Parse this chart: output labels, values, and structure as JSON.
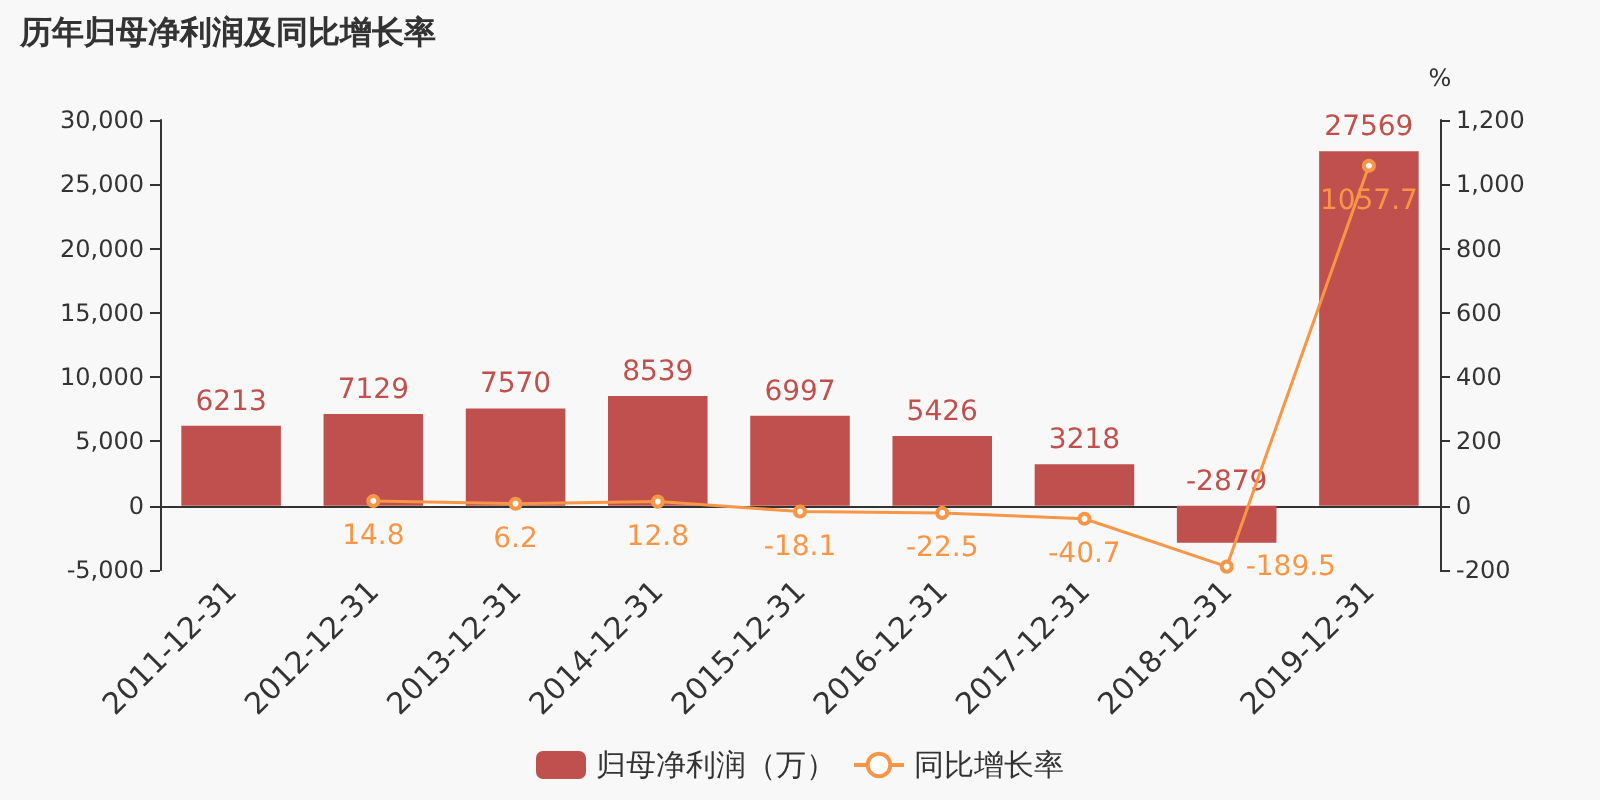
{
  "chart_data": {
    "type": "bar",
    "title": "历年归母净利润及同比增长率",
    "y2label": "%",
    "categories": [
      "2011-12-31",
      "2012-12-31",
      "2013-12-31",
      "2014-12-31",
      "2015-12-31",
      "2016-12-31",
      "2017-12-31",
      "2018-12-31",
      "2019-12-31"
    ],
    "series": [
      {
        "name": "归母净利润（万）",
        "type": "bar",
        "color": "#c0504d",
        "values": [
          6213,
          7129,
          7570,
          8539,
          6997,
          5426,
          3218,
          -2879,
          27569
        ]
      },
      {
        "name": "同比增长率",
        "type": "line",
        "axis": "y2",
        "color": "#f79646",
        "marker": "circle",
        "values": [
          null,
          14.8,
          6.2,
          12.8,
          -18.1,
          -22.5,
          -40.7,
          -189.5,
          1057.7
        ]
      }
    ],
    "ylim": [
      -5000,
      30000
    ],
    "yticks": [
      {
        "value": -5000,
        "label": "-5,000"
      },
      0,
      {
        "value": 5000,
        "label": "5,000"
      },
      {
        "value": 10000,
        "label": "10,000"
      },
      {
        "value": 15000,
        "label": "15,000"
      },
      {
        "value": 20000,
        "label": "20,000"
      },
      {
        "value": 25000,
        "label": "25,000"
      },
      {
        "value": 30000,
        "label": "30,000"
      }
    ],
    "y2lim": [
      -200,
      1200
    ],
    "y2ticks": [
      -200,
      0,
      200,
      400,
      600,
      800,
      {
        "value": 1000,
        "label": "1,000"
      },
      {
        "value": 1200,
        "label": "1,200"
      }
    ],
    "data_labels": true,
    "grid": false,
    "legend": "bottom"
  }
}
